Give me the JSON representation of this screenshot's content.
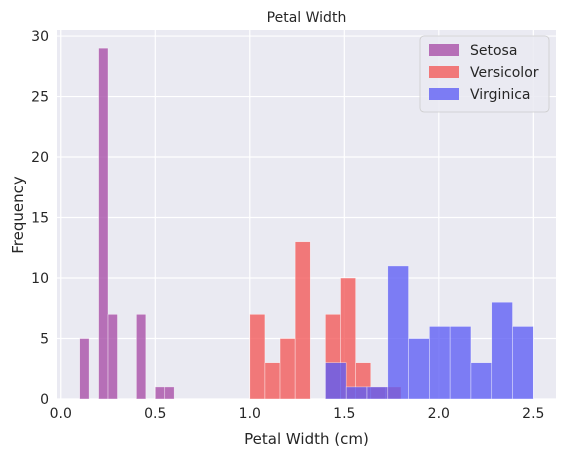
{
  "chart_data": {
    "type": "bar",
    "title": "Petal Width",
    "xlabel": "Petal Width (cm)",
    "ylabel": "Frequency",
    "xlim": [
      -0.02,
      2.62
    ],
    "ylim": [
      0,
      30.5
    ],
    "xticks": [
      "0.0",
      "0.5",
      "1.0",
      "1.5",
      "2.0",
      "2.5"
    ],
    "xtick_values": [
      0.0,
      0.5,
      1.0,
      1.5,
      2.0,
      2.5
    ],
    "yticks": [
      "0",
      "5",
      "10",
      "15",
      "20",
      "25",
      "30"
    ],
    "ytick_values": [
      0,
      5,
      10,
      15,
      20,
      25,
      30
    ],
    "grid": true,
    "legend_position": "top-right",
    "series": [
      {
        "name": "Setosa",
        "color": "#a64ca6",
        "bins": [
          {
            "x0": 0.1,
            "x1": 0.15,
            "count": 5
          },
          {
            "x0": 0.2,
            "x1": 0.25,
            "count": 29
          },
          {
            "x0": 0.25,
            "x1": 0.3,
            "count": 7
          },
          {
            "x0": 0.4,
            "x1": 0.45,
            "count": 7
          },
          {
            "x0": 0.5,
            "x1": 0.55,
            "count": 1
          },
          {
            "x0": 0.55,
            "x1": 0.6,
            "count": 1
          }
        ]
      },
      {
        "name": "Versicolor",
        "color": "#f25757",
        "bins": [
          {
            "x0": 1.0,
            "x1": 1.08,
            "count": 7
          },
          {
            "x0": 1.08,
            "x1": 1.16,
            "count": 3
          },
          {
            "x0": 1.16,
            "x1": 1.24,
            "count": 5
          },
          {
            "x0": 1.24,
            "x1": 1.32,
            "count": 13
          },
          {
            "x0": 1.32,
            "x1": 1.4,
            "count": 0
          },
          {
            "x0": 1.4,
            "x1": 1.48,
            "count": 7
          },
          {
            "x0": 1.48,
            "x1": 1.56,
            "count": 10
          },
          {
            "x0": 1.56,
            "x1": 1.64,
            "count": 3
          },
          {
            "x0": 1.64,
            "x1": 1.72,
            "count": 1
          },
          {
            "x0": 1.72,
            "x1": 1.8,
            "count": 1
          }
        ]
      },
      {
        "name": "Virginica",
        "color": "#5c5cf5",
        "bins": [
          {
            "x0": 1.4,
            "x1": 1.51,
            "count": 3
          },
          {
            "x0": 1.51,
            "x1": 1.62,
            "count": 1
          },
          {
            "x0": 1.62,
            "x1": 1.73,
            "count": 1
          },
          {
            "x0": 1.73,
            "x1": 1.84,
            "count": 11
          },
          {
            "x0": 1.84,
            "x1": 1.95,
            "count": 5
          },
          {
            "x0": 1.95,
            "x1": 2.06,
            "count": 6
          },
          {
            "x0": 2.06,
            "x1": 2.17,
            "count": 6
          },
          {
            "x0": 2.17,
            "x1": 2.28,
            "count": 3
          },
          {
            "x0": 2.28,
            "x1": 2.39,
            "count": 8
          },
          {
            "x0": 2.39,
            "x1": 2.5,
            "count": 6
          }
        ]
      }
    ]
  }
}
